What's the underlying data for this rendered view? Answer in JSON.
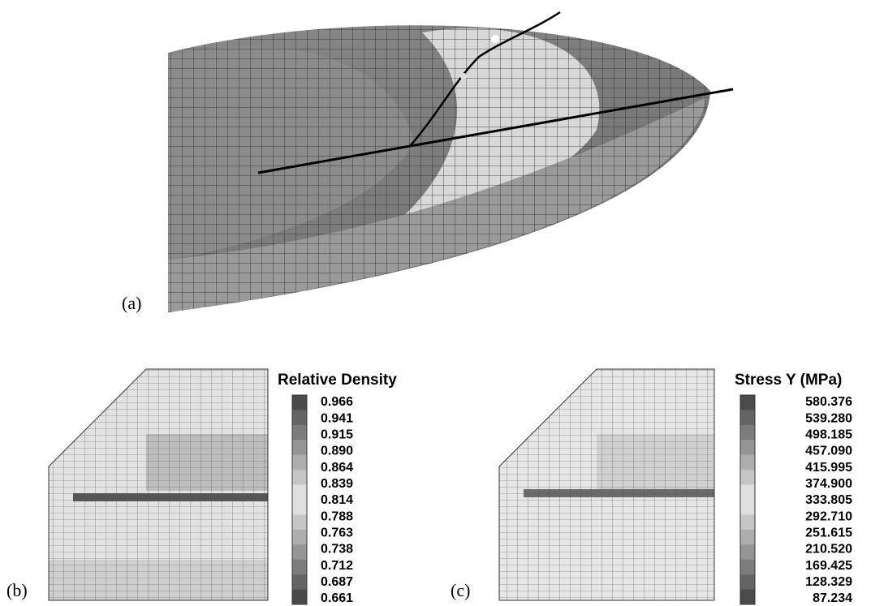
{
  "panels": [
    {
      "label": "(a)"
    },
    {
      "label": "(b)",
      "legend": {
        "title": "Relative Density",
        "values": [
          "0.966",
          "0.941",
          "0.915",
          "0.890",
          "0.864",
          "0.839",
          "0.814",
          "0.788",
          "0.763",
          "0.738",
          "0.712",
          "0.687",
          "0.661"
        ]
      }
    },
    {
      "label": "(c)",
      "legend": {
        "title": "Stress Y (MPa)",
        "values": [
          "580.376",
          "539.280",
          "498.185",
          "457.090",
          "415.995",
          "374.900",
          "333.805",
          "292.710",
          "251.615",
          "210.520",
          "169.425",
          "128.329",
          "87.234"
        ]
      }
    }
  ]
}
